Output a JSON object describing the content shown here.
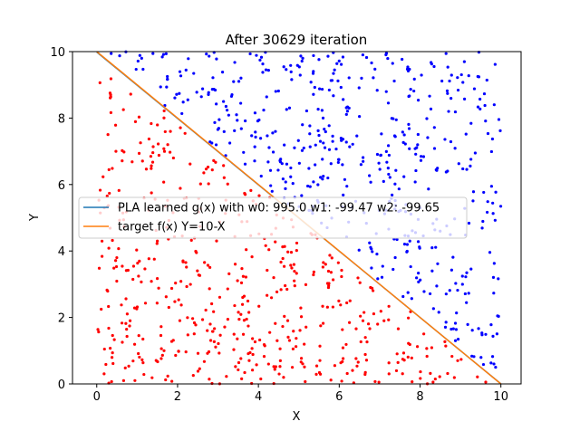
{
  "chart_data": {
    "type": "scatter",
    "title": "After 30629 iteration",
    "xlabel": "X",
    "ylabel": "Y",
    "xlim": [
      -0.6,
      10.5
    ],
    "ylim": [
      0,
      10
    ],
    "xticks": [
      0,
      2,
      4,
      6,
      8,
      10
    ],
    "yticks": [
      0,
      2,
      4,
      6,
      8,
      10
    ],
    "grid": false,
    "legend_position": "center-left",
    "series": [
      {
        "name": "PLA learned g(x) with w0: 995.0 w1: -99.47 w2: -99.65",
        "kind": "line",
        "color": "#1f77b4",
        "x": [
          0,
          10
        ],
        "y": [
          9.985,
          0.003
        ]
      },
      {
        "name": "target f(x) Y=10-X",
        "kind": "line",
        "color": "#ff7f0e",
        "x": [
          0,
          10
        ],
        "y": [
          10,
          0
        ]
      },
      {
        "kind": "scatter",
        "color": "#0000ff",
        "count": 500,
        "region": "y > 10 - x",
        "seed": 7
      },
      {
        "kind": "scatter",
        "color": "#ff0000",
        "count": 500,
        "region": "y < 10 - x",
        "seed": 13
      }
    ]
  }
}
